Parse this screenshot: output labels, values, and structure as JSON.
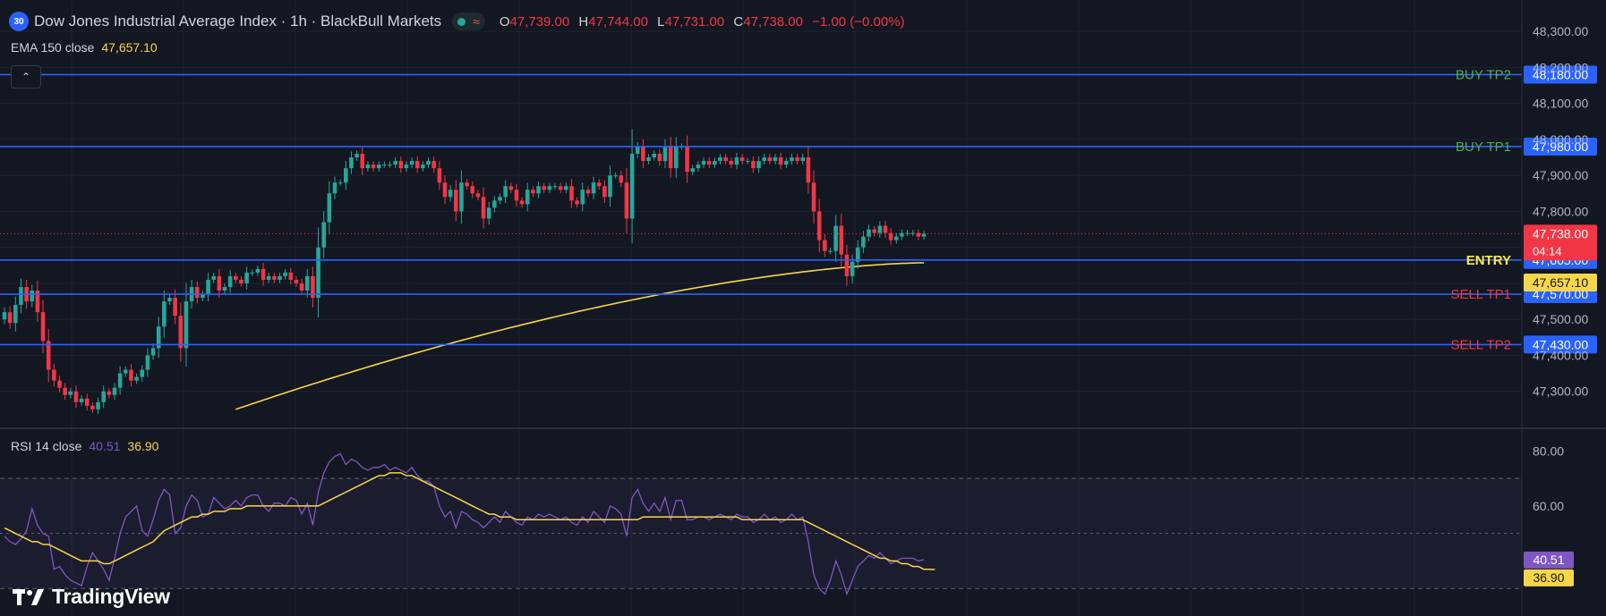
{
  "header": {
    "symbol_badge": "30",
    "title": "Dow Jones Industrial Average Index · 1h · BlackBull Markets",
    "open_label": "O",
    "open": "47,739.00",
    "high_label": "H",
    "high": "47,744.00",
    "low_label": "L",
    "low": "47,731.00",
    "close_label": "C",
    "close": "47,738.00",
    "change": "−1.00 (−0.00%)"
  },
  "ema_legend": {
    "name": "EMA 150 close",
    "value": "47,657.10"
  },
  "rsi_legend": {
    "name": "RSI 14 close",
    "value": "40.51",
    "ma_value": "36.90"
  },
  "branding": {
    "text": "TradingView"
  },
  "icons": {
    "collapse": "chevron-up-icon",
    "status": "market-open-dot-icon",
    "wave": "wave-icon",
    "logo": "tradingview-logo-icon"
  },
  "colors": {
    "background": "#131722",
    "bull": "#26a69a",
    "bear": "#f23645",
    "level_line": "#2962ff",
    "ema": "#f7d64a",
    "rsi": "#7e57c2",
    "buy_text": "#4caf50",
    "sell_text": "#f23645",
    "entry_text": "#ffeb3b"
  },
  "chart_data": [
    {
      "type": "candlestick",
      "title": "Dow Jones Industrial Average Index · 1h · BlackBull Markets",
      "ylim": [
        47200,
        48350
      ],
      "y_ticks": [
        "48,300.00",
        "48,200.00",
        "48,100.00",
        "48,000.00",
        "47,900.00",
        "47,800.00",
        "47,700.00",
        "47,600.00",
        "47,500.00",
        "47,400.00",
        "47,300.00"
      ],
      "grid": true,
      "last_price": "47,738.00",
      "countdown": "04:14",
      "ema_value_label": "47,657.10",
      "levels": [
        {
          "name": "BUY TP2",
          "price": 48180,
          "label": "48,180.00",
          "kind": "buy"
        },
        {
          "name": "BUY TP1",
          "price": 47980,
          "label": "47,980.00",
          "kind": "buy"
        },
        {
          "name": "ENTRY",
          "price": 47665,
          "label": "47,665.00",
          "kind": "entry"
        },
        {
          "name": "SELL TP1",
          "price": 47570,
          "label": "47,570.00",
          "kind": "sell"
        },
        {
          "name": "SELL TP2",
          "price": 47430,
          "label": "47,430.00",
          "kind": "sell"
        }
      ],
      "candle_closes": [
        47520,
        47490,
        47540,
        47590,
        47550,
        47580,
        47520,
        47440,
        47360,
        47330,
        47310,
        47290,
        47300,
        47270,
        47280,
        47260,
        47250,
        47270,
        47300,
        47290,
        47310,
        47350,
        47360,
        47330,
        47340,
        47360,
        47400,
        47420,
        47480,
        47550,
        47560,
        47510,
        47420,
        47550,
        47590,
        47560,
        47570,
        47610,
        47620,
        47580,
        47590,
        47620,
        47610,
        47600,
        47630,
        47630,
        47640,
        47610,
        47620,
        47610,
        47620,
        47630,
        47610,
        47600,
        47580,
        47620,
        47560,
        47700,
        47770,
        47850,
        47880,
        47880,
        47920,
        47950,
        47960,
        47920,
        47930,
        47920,
        47930,
        47930,
        47930,
        47940,
        47920,
        47930,
        47940,
        47920,
        47930,
        47940,
        47920,
        47880,
        47840,
        47860,
        47800,
        47880,
        47870,
        47850,
        47840,
        47780,
        47810,
        47830,
        47840,
        47870,
        47860,
        47830,
        47820,
        47860,
        47850,
        47870,
        47860,
        47870,
        47870,
        47860,
        47870,
        47830,
        47820,
        47860,
        47850,
        47880,
        47870,
        47840,
        47900,
        47900,
        47880,
        47780,
        47960,
        47980,
        47940,
        47950,
        47960,
        47940,
        47980,
        47920,
        47980,
        47980,
        47910,
        47920,
        47930,
        47940,
        47930,
        47940,
        47950,
        47940,
        47930,
        47950,
        47940,
        47940,
        47920,
        47940,
        47950,
        47940,
        47950,
        47930,
        47940,
        47950,
        47940,
        47950,
        47880,
        47800,
        47720,
        47690,
        47690,
        47760,
        47680,
        47620,
        47660,
        47700,
        47730,
        47750,
        47740,
        47760,
        47740,
        47720,
        47730,
        47740,
        47740,
        47740,
        47730,
        47738
      ],
      "ema_start": 47250,
      "ema_end": 47657.1
    },
    {
      "type": "line",
      "title": "RSI 14 close",
      "ylim": [
        20,
        84
      ],
      "y_ticks": [
        "80.00",
        "60.00"
      ],
      "bands": [
        70,
        30
      ],
      "mid": 50,
      "series": [
        {
          "name": "RSI 14 close",
          "last": "40.51",
          "values": [
            49,
            47,
            46,
            48,
            51,
            59,
            53,
            50,
            49,
            37,
            38,
            35,
            33,
            32,
            31,
            38,
            43,
            40,
            37,
            33,
            41,
            50,
            56,
            58,
            60,
            51,
            49,
            55,
            62,
            66,
            64,
            50,
            52,
            60,
            64,
            62,
            56,
            57,
            63,
            61,
            59,
            60,
            62,
            60,
            63,
            64,
            64,
            60,
            58,
            61,
            61,
            60,
            63,
            62,
            57,
            61,
            53,
            65,
            72,
            76,
            78,
            79,
            75,
            77,
            76,
            74,
            73,
            74,
            74,
            75,
            73,
            74,
            73,
            72,
            74,
            71,
            69,
            69,
            67,
            60,
            56,
            58,
            52,
            58,
            57,
            55,
            54,
            52,
            54,
            56,
            54,
            58,
            56,
            54,
            53,
            56,
            55,
            57,
            56,
            57,
            56,
            55,
            56,
            54,
            53,
            56,
            54,
            58,
            56,
            54,
            60,
            59,
            57,
            49,
            63,
            66,
            61,
            58,
            61,
            58,
            63,
            55,
            62,
            62,
            55,
            55,
            56,
            56,
            55,
            56,
            57,
            56,
            55,
            57,
            56,
            56,
            54,
            55,
            57,
            55,
            56,
            54,
            55,
            57,
            55,
            56,
            47,
            35,
            30,
            28,
            33,
            40,
            35,
            28,
            33,
            38,
            40,
            42,
            41,
            43,
            41,
            39,
            40,
            41,
            41,
            41,
            40,
            40.51
          ]
        },
        {
          "name": "RSI MA",
          "last": "36.90",
          "values": [
            52,
            51,
            50,
            49,
            48,
            47,
            47,
            46,
            46,
            45,
            44,
            43,
            42,
            41,
            40,
            40,
            40,
            40,
            39,
            39,
            40,
            41,
            42,
            43,
            44,
            45,
            46,
            47,
            49,
            51,
            52,
            53,
            54,
            55,
            56,
            56,
            57,
            57,
            58,
            58,
            58,
            59,
            59,
            59,
            60,
            60,
            60,
            60,
            60,
            60,
            60,
            60,
            60,
            60,
            60,
            60,
            60,
            60,
            61,
            62,
            63,
            64,
            65,
            66,
            67,
            68,
            69,
            70,
            71,
            71,
            72,
            72,
            72,
            71,
            71,
            70,
            69,
            68,
            67,
            66,
            65,
            64,
            63,
            62,
            61,
            60,
            59,
            58,
            57,
            57,
            56,
            56,
            56,
            55,
            55,
            55,
            55,
            55,
            55,
            55,
            55,
            55,
            55,
            55,
            55,
            55,
            55,
            55,
            55,
            55,
            55,
            55,
            55,
            55,
            55,
            55,
            56,
            56,
            56,
            56,
            56,
            56,
            56,
            56,
            56,
            56,
            56,
            56,
            56,
            56,
            56,
            56,
            56,
            56,
            55,
            55,
            55,
            55,
            55,
            55,
            55,
            55,
            55,
            55,
            55,
            55,
            54,
            53,
            52,
            51,
            50,
            49,
            48,
            47,
            46,
            45,
            44,
            43,
            42,
            41,
            41,
            40,
            40,
            39,
            39,
            38,
            38,
            37,
            37,
            36.9
          ]
        }
      ]
    }
  ]
}
